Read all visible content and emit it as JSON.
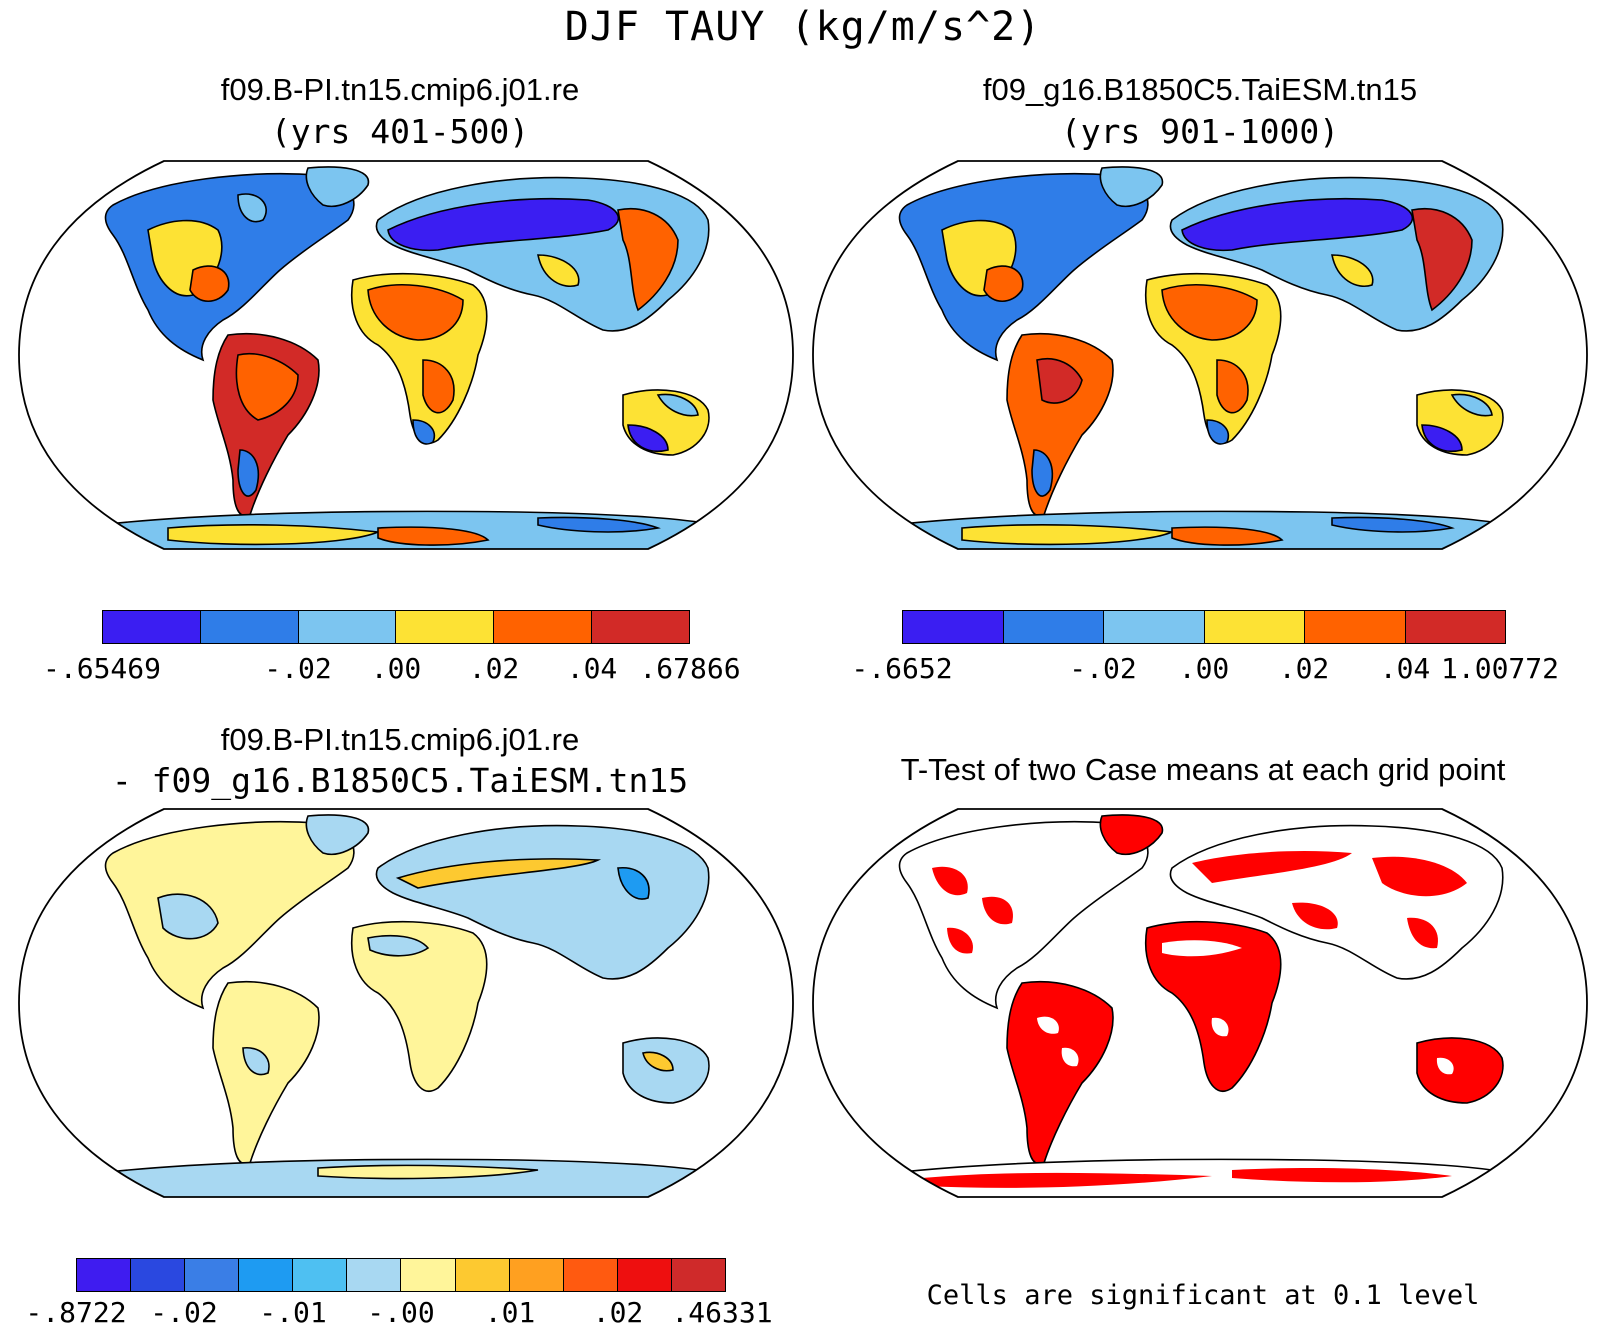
{
  "figure": {
    "title": "DJF TAUY (kg/m/s^2)"
  },
  "panels": [
    {
      "id": "panel-case1",
      "title": "f09.B-PI.tn15.cmip6.j01.re",
      "subtitle": "(yrs 401-500)",
      "colorbar": {
        "colors": [
          "#3b1ef2",
          "#2f7de8",
          "#7cc5f0",
          "#fde234",
          "#ff6200",
          "#d22a27"
        ],
        "labels": [
          "-.65469",
          "-.02",
          ".00",
          ".02",
          ".04",
          ".67866"
        ]
      }
    },
    {
      "id": "panel-case2",
      "title": "f09_g16.B1850C5.TaiESM.tn15",
      "subtitle": "(yrs 901-1000)",
      "colorbar": {
        "colors": [
          "#3b1ef2",
          "#2f7de8",
          "#7cc5f0",
          "#fde234",
          "#ff6200",
          "#d22a27"
        ],
        "labels": [
          "-.6652",
          "-.02",
          ".00",
          ".02",
          ".04",
          "1.00772"
        ]
      }
    },
    {
      "id": "panel-diff",
      "title": "f09.B-PI.tn15.cmip6.j01.re",
      "subtitle": "- f09_g16.B1850C5.TaiESM.tn15",
      "colorbar": {
        "colors": [
          "#3f1cf0",
          "#2a48e0",
          "#3a7ee6",
          "#1e9bf2",
          "#4ec0f2",
          "#a8d8f2",
          "#fff59a",
          "#fdc930",
          "#ffa020",
          "#ff5a10",
          "#ee0f0f",
          "#cf2a2a"
        ],
        "labels": [
          "-.8722",
          "-.02",
          "-.01",
          "-.00",
          ".01",
          ".02",
          ".46331"
        ]
      }
    },
    {
      "id": "panel-ttest",
      "title": "T-Test of two Case means at each grid point",
      "note": "Cells are significant at 0.1 level",
      "sig_color": "#ff0000"
    }
  ]
}
